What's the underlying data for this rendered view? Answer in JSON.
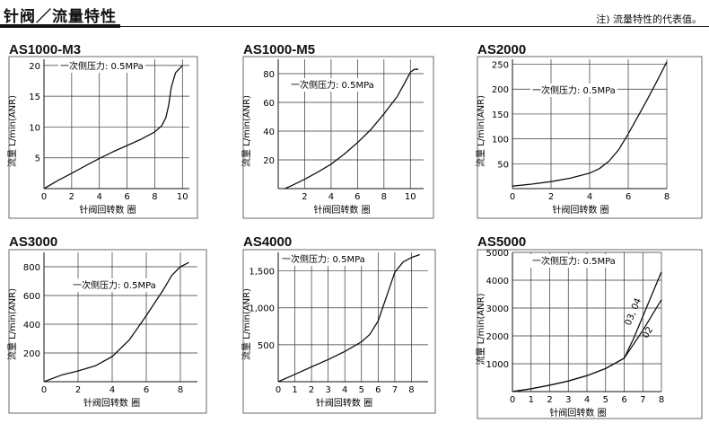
{
  "page": {
    "title": "针阀／流量特性",
    "note": "注) 流量特性的代表值。"
  },
  "chart_data": [
    {
      "type": "line",
      "title": "AS1000-M3",
      "annotation": "一次侧压力: 0.5MPa",
      "xlabel": "针阀回转数  圈",
      "ylabel": "流量  L/min(ANR)",
      "xlim": [
        0,
        10.5
      ],
      "ylim": [
        0,
        21
      ],
      "xticks": [
        0,
        2,
        4,
        6,
        8,
        10
      ],
      "yticks": [
        5,
        10,
        15,
        20
      ],
      "grid": true,
      "series": [
        {
          "x": [
            0,
            1,
            2,
            3,
            4,
            5,
            6,
            7,
            8,
            8.5,
            8.8,
            9.0,
            9.2,
            9.5,
            10
          ],
          "y": [
            0,
            1.3,
            2.5,
            3.7,
            4.9,
            6.0,
            7.0,
            8.0,
            9.2,
            10.2,
            11.5,
            13.5,
            16.5,
            18.8,
            20
          ]
        }
      ]
    },
    {
      "type": "line",
      "title": "AS1000-M5",
      "annotation": "一次侧压力: 0.5MPa",
      "xlabel": "针阀回转数  圈",
      "ylabel": "流量  L/min(ANR)",
      "xlim": [
        0,
        11
      ],
      "ylim": [
        0,
        90
      ],
      "xticks": [
        2,
        4,
        6,
        8,
        10
      ],
      "yticks": [
        20,
        40,
        60,
        80
      ],
      "grid": true,
      "series": [
        {
          "x": [
            0.5,
            1,
            2,
            3,
            4,
            5,
            6,
            7,
            8,
            9,
            9.6,
            10,
            10.3,
            10.6
          ],
          "y": [
            0,
            2,
            6.5,
            11.5,
            17,
            24,
            32,
            41,
            52,
            64,
            74,
            81,
            83,
            83
          ]
        }
      ]
    },
    {
      "type": "line",
      "title": "AS2000",
      "annotation": "一次侧压力: 0.5MPa",
      "xlabel": "针阀回转数  圈",
      "ylabel": "流量  L/min(ANR)",
      "xlim": [
        0,
        8
      ],
      "ylim": [
        0,
        260
      ],
      "xticks": [
        0,
        2,
        4,
        6,
        8
      ],
      "yticks": [
        50,
        100,
        150,
        200,
        250
      ],
      "grid": true,
      "series": [
        {
          "x": [
            0,
            1,
            2,
            3,
            4,
            4.5,
            5,
            5.5,
            6,
            6.5,
            7,
            7.5,
            8
          ],
          "y": [
            5,
            9,
            14,
            21,
            31,
            40,
            55,
            78,
            110,
            145,
            180,
            217,
            255
          ]
        }
      ]
    },
    {
      "type": "line",
      "title": "AS3000",
      "annotation": "一次侧压力: 0.5MPa",
      "xlabel": "针阀回转数  圈",
      "ylabel": "流量  L/min(ANR)",
      "xlim": [
        0,
        9
      ],
      "ylim": [
        0,
        900
      ],
      "xticks": [
        0,
        2,
        4,
        6,
        8
      ],
      "yticks": [
        200,
        400,
        600,
        800
      ],
      "grid": true,
      "series": [
        {
          "x": [
            0,
            1,
            2,
            3,
            4,
            5,
            6,
            7,
            7.5,
            8,
            8.5
          ],
          "y": [
            0,
            45,
            75,
            110,
            175,
            290,
            460,
            640,
            740,
            800,
            830
          ]
        }
      ]
    },
    {
      "type": "line",
      "title": "AS4000",
      "annotation": "一次侧压力: 0.5MPa",
      "xlabel": "针阀回转数  圈",
      "ylabel": "流量  L/min(ANR)",
      "xlim": [
        0,
        9
      ],
      "ylim": [
        0,
        1750
      ],
      "xticks": [
        0,
        1,
        2,
        3,
        4,
        5,
        6,
        7,
        8
      ],
      "yticks": [
        500,
        1000,
        1500
      ],
      "ytick_labels": [
        "500",
        "1,000",
        "1,500"
      ],
      "grid": true,
      "series": [
        {
          "x": [
            0,
            1,
            2,
            3,
            4,
            5,
            5.5,
            6,
            6.5,
            7,
            7.5,
            8,
            8.5
          ],
          "y": [
            0,
            100,
            200,
            300,
            410,
            540,
            640,
            820,
            1150,
            1480,
            1620,
            1680,
            1720
          ]
        }
      ]
    },
    {
      "type": "line",
      "title": "AS5000",
      "annotation": "一次侧压力: 0.5MPa",
      "xlabel": "针阀回转数  圈",
      "ylabel": "流量  L/min(ANR)",
      "xlim": [
        0,
        8
      ],
      "ylim": [
        0,
        5000
      ],
      "xticks": [
        0,
        1,
        2,
        3,
        4,
        5,
        6,
        7,
        8
      ],
      "yticks": [
        1000,
        2000,
        3000,
        4000,
        5000
      ],
      "grid": true,
      "series": [
        {
          "name": "03, 04",
          "x": [
            0,
            1,
            2,
            3,
            4,
            5,
            6,
            6.5,
            7,
            7.5,
            8
          ],
          "y": [
            0,
            100,
            230,
            380,
            570,
            830,
            1200,
            1900,
            2700,
            3500,
            4300
          ]
        },
        {
          "name": "02",
          "x": [
            0,
            1,
            2,
            3,
            4,
            5,
            6,
            6.5,
            7,
            7.5,
            8
          ],
          "y": [
            0,
            100,
            230,
            380,
            570,
            830,
            1200,
            1700,
            2200,
            2750,
            3300
          ]
        }
      ]
    }
  ]
}
